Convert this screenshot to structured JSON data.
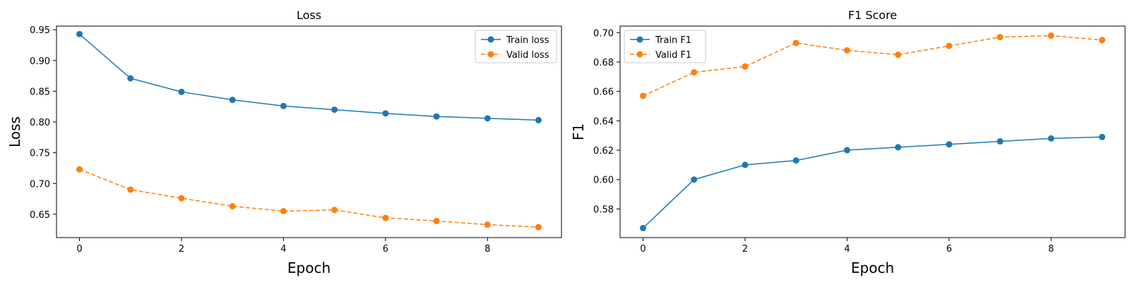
{
  "chart_data": [
    {
      "type": "line",
      "title": "Loss",
      "xlabel": "Epoch",
      "ylabel": "Loss",
      "x": [
        0,
        1,
        2,
        3,
        4,
        5,
        6,
        7,
        8,
        9
      ],
      "xlim": [
        -0.45,
        9.45
      ],
      "ylim": [
        0.612,
        0.956
      ],
      "xticks": [
        0,
        2,
        4,
        6,
        8
      ],
      "yticks": [
        0.65,
        0.7,
        0.75,
        0.8,
        0.85,
        0.9,
        0.95
      ],
      "ytick_labels": [
        "0.65",
        "0.70",
        "0.75",
        "0.80",
        "0.85",
        "0.90",
        "0.95"
      ],
      "legend_position": "top-right",
      "grid": false,
      "series": [
        {
          "name": "Train loss",
          "color": "#1f77b4",
          "linestyle": "solid",
          "marker": "circle",
          "values": [
            0.943,
            0.871,
            0.849,
            0.836,
            0.826,
            0.82,
            0.814,
            0.809,
            0.806,
            0.803
          ]
        },
        {
          "name": "Valid loss",
          "color": "#ff7f0e",
          "linestyle": "dashed",
          "marker": "circle",
          "values": [
            0.723,
            0.69,
            0.676,
            0.663,
            0.655,
            0.657,
            0.644,
            0.639,
            0.633,
            0.629
          ]
        }
      ]
    },
    {
      "type": "line",
      "title": "F1 Score",
      "xlabel": "Epoch",
      "ylabel": "F1",
      "x": [
        0,
        1,
        2,
        3,
        4,
        5,
        6,
        7,
        8,
        9
      ],
      "xlim": [
        -0.45,
        9.45
      ],
      "ylim": [
        0.5605,
        0.7045
      ],
      "xticks": [
        0,
        2,
        4,
        6,
        8
      ],
      "yticks": [
        0.58,
        0.6,
        0.62,
        0.64,
        0.66,
        0.68,
        0.7
      ],
      "ytick_labels": [
        "0.58",
        "0.60",
        "0.62",
        "0.64",
        "0.66",
        "0.68",
        "0.70"
      ],
      "legend_position": "top-left",
      "grid": false,
      "series": [
        {
          "name": "Train F1",
          "color": "#1f77b4",
          "linestyle": "solid",
          "marker": "circle",
          "values": [
            0.567,
            0.6,
            0.61,
            0.613,
            0.62,
            0.622,
            0.624,
            0.626,
            0.628,
            0.629
          ]
        },
        {
          "name": "Valid F1",
          "color": "#ff7f0e",
          "linestyle": "dashed",
          "marker": "circle",
          "values": [
            0.657,
            0.673,
            0.677,
            0.693,
            0.688,
            0.685,
            0.691,
            0.697,
            0.698,
            0.695
          ]
        }
      ]
    }
  ]
}
